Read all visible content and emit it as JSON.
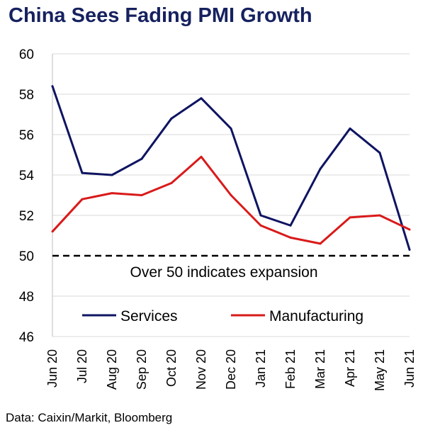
{
  "title": "China Sees Fading PMI Growth",
  "source": "Data: Caixin/Markit, Bloomberg",
  "colors": {
    "title": "#16215f",
    "services": "#0e1461",
    "manufacturing": "#d91a1a",
    "grid": "#d9d9d9",
    "axis": "#bfbfbf",
    "threshold": "#000000"
  },
  "chart_data": {
    "type": "line",
    "title": "China Sees Fading PMI Growth",
    "xlabel": "",
    "ylabel": "",
    "ylim": [
      46,
      60
    ],
    "yticks": [
      46,
      48,
      50,
      52,
      54,
      56,
      58,
      60
    ],
    "grid": true,
    "legend_position": "bottom",
    "categories": [
      "Jun 20",
      "Jul 20",
      "Aug 20",
      "Sep 20",
      "Oct 20",
      "Nov 20",
      "Dec 20",
      "Jan 21",
      "Feb 21",
      "Mar 21",
      "Apr 21",
      "May 21",
      "Jun 21"
    ],
    "series": [
      {
        "name": "Services",
        "color": "#0e1461",
        "values": [
          58.4,
          54.1,
          54.0,
          54.8,
          56.8,
          57.8,
          56.3,
          52.0,
          51.5,
          54.3,
          56.3,
          55.1,
          50.3
        ]
      },
      {
        "name": "Manufacturing",
        "color": "#d91a1a",
        "values": [
          51.2,
          52.8,
          53.1,
          53.0,
          53.6,
          54.9,
          53.0,
          51.5,
          50.9,
          50.6,
          51.9,
          52.0,
          51.3
        ]
      }
    ],
    "reference_line": {
      "y": 50,
      "style": "dashed",
      "label": "Over 50 indicates expansion"
    }
  }
}
